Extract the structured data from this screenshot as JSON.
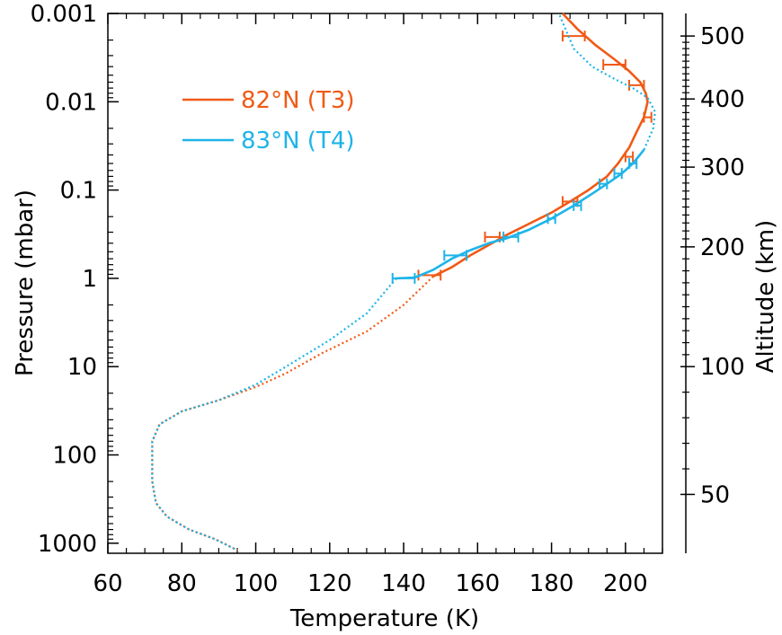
{
  "chart_data": {
    "type": "line",
    "xlabel": "Temperature (K)",
    "ylabel": "Pressure (mbar)",
    "y2label": "Altitude (km)",
    "xlim": [
      60,
      210
    ],
    "ylim": [
      1300,
      0.001
    ],
    "yscale": "log",
    "xticks": [
      "60",
      "80",
      "100",
      "120",
      "140",
      "160",
      "180",
      "200"
    ],
    "yticks": [
      {
        "value": 0.001,
        "label": "0.001"
      },
      {
        "value": 0.01,
        "label": "0.01"
      },
      {
        "value": 0.1,
        "label": "0.1"
      },
      {
        "value": 1,
        "label": "1"
      },
      {
        "value": 10,
        "label": "10"
      },
      {
        "value": 100,
        "label": "100"
      },
      {
        "value": 1000,
        "label": "1000"
      }
    ],
    "right_axis_ticks": [
      {
        "label": "500",
        "pressure": 0.0018
      },
      {
        "label": "400",
        "pressure": 0.0093
      },
      {
        "label": "300",
        "pressure": 0.055
      },
      {
        "label": "200",
        "pressure": 0.44
      },
      {
        "label": "100",
        "pressure": 10
      },
      {
        "label": "50",
        "pressure": 280
      }
    ],
    "legend_position": "top-left",
    "series": [
      {
        "name": "82°N (T3)",
        "color": "#f05a16",
        "solid": [
          [
            148,
            0.95
          ],
          [
            153,
            0.75
          ],
          [
            158,
            0.55
          ],
          [
            163,
            0.42
          ],
          [
            168,
            0.32
          ],
          [
            174,
            0.24
          ],
          [
            180,
            0.18
          ],
          [
            185,
            0.135
          ],
          [
            190,
            0.1
          ],
          [
            195,
            0.07
          ],
          [
            198,
            0.05
          ],
          [
            201,
            0.033
          ],
          [
            203,
            0.022
          ],
          [
            205,
            0.015
          ],
          [
            206,
            0.01
          ],
          [
            205.5,
            0.008
          ],
          [
            204,
            0.006
          ],
          [
            201,
            0.0045
          ],
          [
            197,
            0.0033
          ],
          [
            192,
            0.0023
          ],
          [
            187,
            0.0015
          ],
          [
            183,
            0.001
          ]
        ],
        "dotted": [
          [
            148,
            0.95
          ],
          [
            140,
            2
          ],
          [
            130,
            4
          ],
          [
            118,
            7
          ],
          [
            108,
            12
          ],
          [
            100,
            17
          ],
          [
            90,
            24
          ],
          [
            80,
            32
          ],
          [
            74,
            45
          ],
          [
            72,
            70
          ],
          [
            72,
            200
          ],
          [
            73,
            350
          ],
          [
            76,
            500
          ],
          [
            82,
            700
          ],
          [
            89,
            900
          ],
          [
            95,
            1200
          ]
        ],
        "errorbars": [
          [
            147,
            0.92,
            3
          ],
          [
            164,
            0.34,
            2
          ],
          [
            185,
            0.135,
            2
          ],
          [
            201,
            0.042,
            1
          ],
          [
            206,
            0.015,
            1
          ],
          [
            203,
            0.0065,
            2
          ],
          [
            197,
            0.0038,
            3
          ],
          [
            186,
            0.0018,
            3
          ]
        ]
      },
      {
        "name": "83°N (T4)",
        "color": "#1eb4e8",
        "solid": [
          [
            138,
            1.0
          ],
          [
            143,
            0.98
          ],
          [
            148,
            0.8
          ],
          [
            153,
            0.6
          ],
          [
            158,
            0.48
          ],
          [
            163,
            0.4
          ],
          [
            168,
            0.35
          ],
          [
            174,
            0.28
          ],
          [
            180,
            0.21
          ],
          [
            186,
            0.15
          ],
          [
            191,
            0.11
          ],
          [
            195,
            0.085
          ],
          [
            199,
            0.065
          ],
          [
            202,
            0.05
          ],
          [
            205,
            0.035
          ]
        ],
        "dotted": [
          [
            138,
            1.0
          ],
          [
            130,
            2.5
          ],
          [
            120,
            5
          ],
          [
            110,
            9
          ],
          [
            100,
            16
          ],
          [
            90,
            24
          ],
          [
            80,
            32
          ],
          [
            74,
            45
          ],
          [
            72,
            70
          ],
          [
            72,
            200
          ],
          [
            73,
            350
          ],
          [
            76,
            500
          ],
          [
            82,
            700
          ],
          [
            89,
            900
          ],
          [
            95,
            1200
          ]
        ],
        "dotted_top": [
          [
            205,
            0.035
          ],
          [
            207.5,
            0.02
          ],
          [
            208,
            0.013
          ],
          [
            206,
            0.009
          ],
          [
            202,
            0.007
          ],
          [
            197,
            0.0055
          ],
          [
            191,
            0.004
          ],
          [
            186,
            0.0025
          ],
          [
            182,
            0.001
          ]
        ],
        "errorbars": [
          [
            140,
            1.0,
            3
          ],
          [
            154,
            0.55,
            3
          ],
          [
            169,
            0.34,
            2
          ],
          [
            180,
            0.21,
            1
          ],
          [
            187,
            0.15,
            1
          ],
          [
            194,
            0.085,
            1
          ],
          [
            198,
            0.065,
            1
          ],
          [
            202,
            0.05,
            1
          ]
        ]
      }
    ]
  }
}
